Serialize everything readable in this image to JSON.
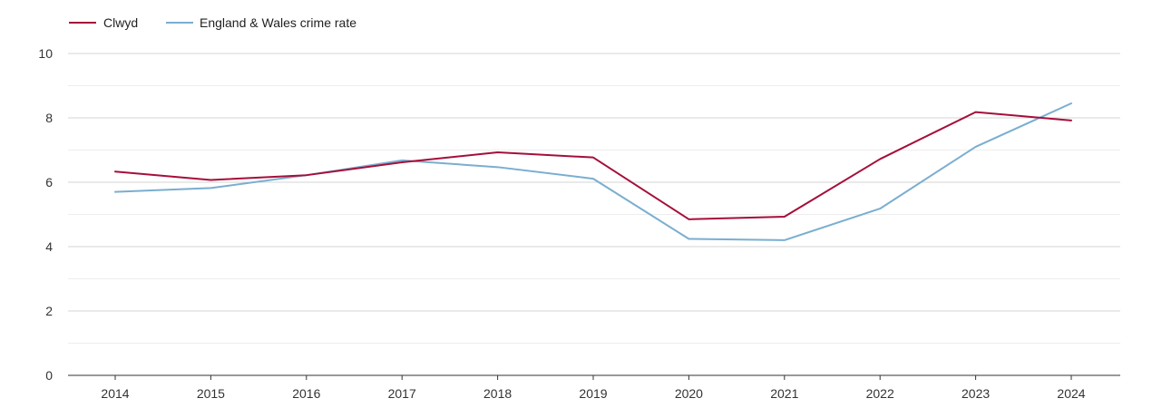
{
  "chart_data": {
    "type": "line",
    "title": "",
    "xlabel": "",
    "ylabel": "",
    "x": [
      "2014",
      "2015",
      "2016",
      "2017",
      "2018",
      "2019",
      "2020",
      "2021",
      "2022",
      "2023",
      "2024"
    ],
    "ylim": [
      0,
      10
    ],
    "y_ticks": [
      "0",
      "2",
      "4",
      "6",
      "8",
      "10"
    ],
    "grid": true,
    "legend_position": "top-left",
    "series": [
      {
        "name": "Clwyd",
        "color": "#a50f3a",
        "values": [
          6.33,
          6.07,
          6.22,
          6.62,
          6.93,
          6.77,
          4.85,
          4.93,
          6.72,
          8.18,
          7.92
        ]
      },
      {
        "name": "England & Wales crime rate",
        "color": "#7aaed0",
        "values": [
          5.7,
          5.82,
          6.22,
          6.68,
          6.47,
          6.11,
          4.24,
          4.2,
          5.18,
          7.1,
          8.45
        ]
      }
    ]
  }
}
